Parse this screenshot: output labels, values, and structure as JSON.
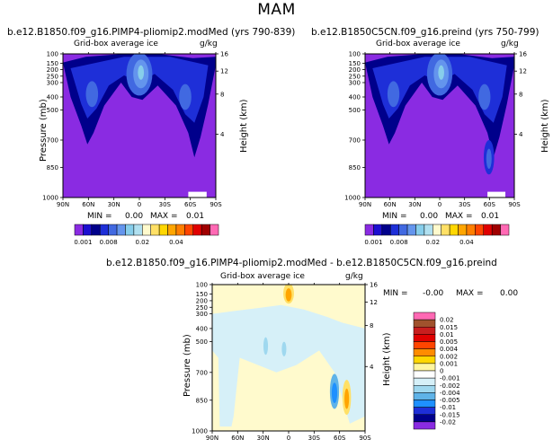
{
  "title": "MAM",
  "colors": {
    "purple": "#8a2be2",
    "navy": "#00008b",
    "blue": "#1e2fd8",
    "medblue": "#4169e1",
    "lightblue": "#6495ed",
    "sky": "#87ceeb",
    "cyan": "#00bfff"
  },
  "chart_data": [
    {
      "type": "heatmap",
      "title": "b.e12.B1850.f09_g16.PIMP4-pliomip2.modMed (yrs 790-839)",
      "subtitle": "Grid-box average ice",
      "units": "g/kg",
      "xlabel": "",
      "ylabel": "Pressure (mb)",
      "ylabel_right": "Height (km)",
      "x_ticks": [
        "90N",
        "60N",
        "30N",
        "0",
        "30S",
        "60S",
        "90S"
      ],
      "y_ticks": [
        "100",
        "150",
        "200",
        "250",
        "300",
        "400",
        "500",
        "700",
        "850",
        "1000"
      ],
      "y_right_ticks": [
        "16",
        "12",
        "8",
        "4"
      ],
      "stats": {
        "min_label": "MIN =",
        "min": "0.00",
        "max_label": "MAX =",
        "max": "0.01"
      },
      "colorbar": [
        "0.001",
        "0.008",
        "0.02",
        "0.04"
      ]
    },
    {
      "type": "heatmap",
      "title": "b.e12.B1850C5CN.f09_g16.preind (yrs 750-799)",
      "subtitle": "Grid-box average ice",
      "units": "g/kg",
      "xlabel": "",
      "ylabel": "Pressure (mb)",
      "ylabel_right": "Height (km)",
      "x_ticks": [
        "90N",
        "60N",
        "30N",
        "0",
        "30S",
        "60S",
        "90S"
      ],
      "y_ticks": [
        "100",
        "150",
        "200",
        "250",
        "300",
        "400",
        "500",
        "700",
        "850",
        "1000"
      ],
      "y_right_ticks": [
        "16",
        "12",
        "8",
        "4"
      ],
      "stats": {
        "min_label": "MIN =",
        "min": "0.00",
        "max_label": "MAX =",
        "max": "0.01"
      },
      "colorbar": [
        "0.001",
        "0.008",
        "0.02",
        "0.04"
      ]
    },
    {
      "type": "heatmap",
      "title": "b.e12.B1850.f09_g16.PIMP4-pliomip2.modMed - b.e12.B1850C5CN.f09_g16.preind",
      "subtitle": "Grid-box average ice",
      "units": "g/kg",
      "xlabel": "",
      "ylabel": "Pressure (mb)",
      "ylabel_right": "Height (km)",
      "x_ticks": [
        "90N",
        "60N",
        "30N",
        "0",
        "30S",
        "60S",
        "90S"
      ],
      "y_ticks": [
        "100",
        "150",
        "200",
        "250",
        "300",
        "400",
        "500",
        "700",
        "850",
        "1000"
      ],
      "y_right_ticks": [
        "16",
        "12",
        "8",
        "4"
      ],
      "stats": {
        "min_label": "MIN =",
        "min": "-0.00",
        "max_label": "MAX =",
        "max": "0.00"
      },
      "colorbar": [
        "0.02",
        "0.015",
        "0.01",
        "0.005",
        "0.004",
        "0.002",
        "0.001",
        "0",
        "-0.001",
        "-0.002",
        "-0.004",
        "-0.005",
        "-0.01",
        "-0.015",
        "-0.02"
      ]
    }
  ]
}
